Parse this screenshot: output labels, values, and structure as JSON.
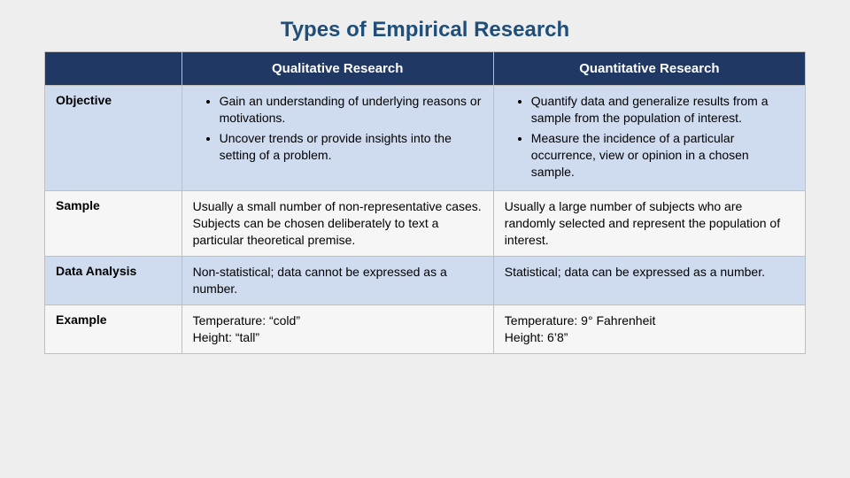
{
  "title": "Types of Empirical Research",
  "colors": {
    "page_bg": "#eeeeee",
    "title_color": "#1f4e79",
    "header_bg": "#203864",
    "header_text": "#ffffff",
    "row_alt_bg": "#cfdcf0",
    "row_plain_bg": "#f6f6f6",
    "border": "#bfbfbf",
    "body_text": "#000000"
  },
  "columns": {
    "c1": "Qualitative Research",
    "c2": "Quantitative Research"
  },
  "rows": {
    "objective": {
      "label": "Objective",
      "qual": {
        "b1": "Gain an understanding of underlying reasons or motivations.",
        "b2": "Uncover trends or provide insights into the setting of a problem."
      },
      "quant": {
        "b1": "Quantify data and generalize results from a sample from the population of interest.",
        "b2": "Measure the incidence of a particular occurrence, view or opinion in a chosen sample."
      }
    },
    "sample": {
      "label": "Sample",
      "qual": "Usually a small number of non-representative cases. Subjects can be chosen deliberately to text a particular theoretical premise.",
      "quant": "Usually a large number of subjects who are randomly selected and represent the population of interest."
    },
    "analysis": {
      "label": "Data Analysis",
      "qual": "Non-statistical; data cannot be expressed as a number.",
      "quant": "Statistical; data can be expressed as a number."
    },
    "example": {
      "label": "Example",
      "qual_l1": "Temperature: “cold”",
      "qual_l2": "Height: “tall”",
      "quant_l1": "Temperature: 9° Fahrenheit",
      "quant_l2": "Height: 6’8”"
    }
  }
}
